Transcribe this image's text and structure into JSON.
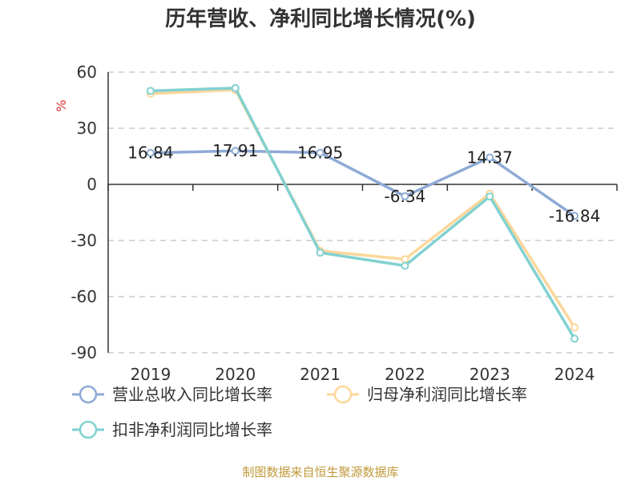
{
  "colors": {
    "revenue": "#8eaad6",
    "net_profit": "#fcd79b",
    "deducted_profit": "#82d1d1",
    "grid": "#cccccc",
    "axis": "#333333"
  },
  "source": "制图数据来自恒生聚源数据库",
  "chart_data": {
    "type": "line",
    "title": "历年营收、净利同比增长情况(%)",
    "ylabel": "%",
    "xlabel": "",
    "categories": [
      "2019",
      "2020",
      "2021",
      "2022",
      "2023",
      "2024"
    ],
    "ylim": [
      -90,
      60
    ],
    "yticks": [
      "60",
      "30",
      "0",
      "-30",
      "-60",
      "-90"
    ],
    "ytick_values": [
      60,
      30,
      0,
      -30,
      -60,
      -90
    ],
    "grid": true,
    "legend_position": "bottom",
    "series": [
      {
        "name": "营业总收入同比增长率",
        "color_key": "revenue",
        "values": [
          16.84,
          17.91,
          16.95,
          -6.34,
          14.37,
          -16.84
        ],
        "labels": [
          "16.84",
          "17.91",
          "16.95",
          "-6.34",
          "14.37",
          "-16.84"
        ]
      },
      {
        "name": "归母净利润同比增长率",
        "color_key": "net_profit",
        "values": [
          48.5,
          50.5,
          -35.5,
          -40.0,
          -5.0,
          -76.5
        ]
      },
      {
        "name": "扣非净利润同比增长率",
        "color_key": "deducted_profit",
        "values": [
          50.0,
          51.5,
          -36.5,
          -43.5,
          -6.5,
          -82.5
        ]
      }
    ]
  }
}
